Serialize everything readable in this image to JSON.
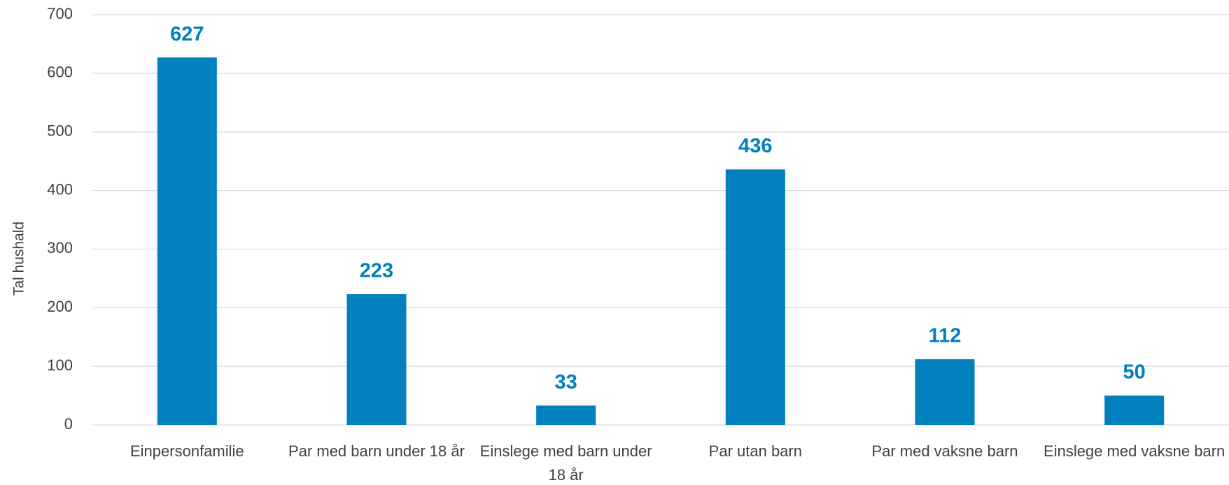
{
  "chart_data": {
    "type": "bar",
    "y_label": "Tal hushald",
    "categories": [
      "Einpersonfamilie",
      "Par med barn under 18 år",
      "Einslege med barn under 18 år",
      "Par utan barn",
      "Par med vaksne barn",
      "Einslege med vaksne barn"
    ],
    "values": [
      627,
      223,
      33,
      436,
      112,
      50
    ],
    "color": "#0080bd",
    "ylim": [
      0,
      700
    ],
    "yticks": [
      0,
      100,
      200,
      300,
      400,
      500,
      600,
      700
    ],
    "grid": true
  }
}
